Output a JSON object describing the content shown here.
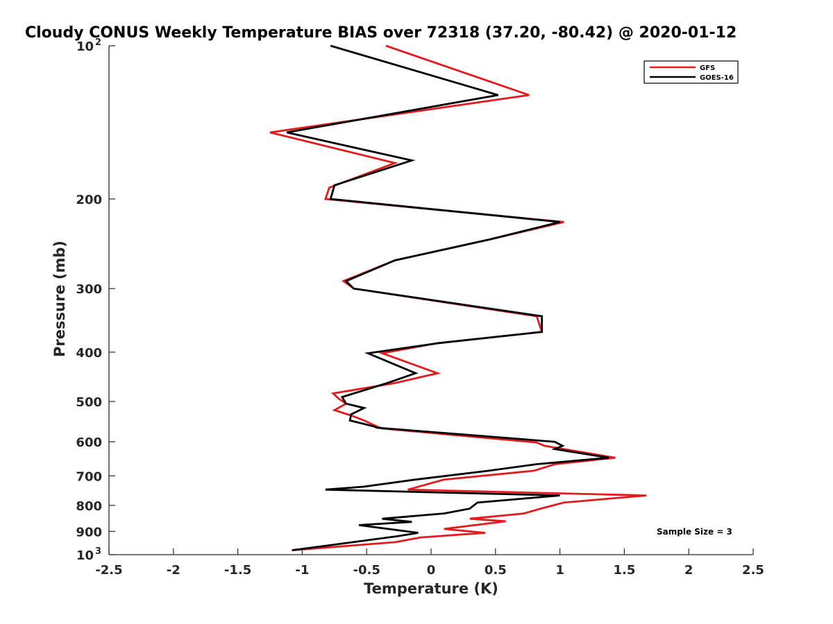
{
  "chart_data": {
    "type": "line",
    "title": "Cloudy CONUS Weekly Temperature BIAS over 72318 (37.20, -80.42) @ 2020-01-12",
    "xlabel": "Temperature (K)",
    "ylabel": "Pressure (mb)",
    "xlim": [
      -2.5,
      2.5
    ],
    "ylim": [
      100,
      1000
    ],
    "yscale": "log",
    "y_reversed": true,
    "grid": false,
    "x_ticks": [
      "-2.5",
      "-2",
      "-1.5",
      "-1",
      "-0.5",
      "0",
      "0.5",
      "1",
      "1.5",
      "2",
      "2.5"
    ],
    "y_ticks": [
      {
        "value": 100,
        "label": "10",
        "sup": "2"
      },
      {
        "value": 200,
        "label": "200",
        "sup": ""
      },
      {
        "value": 300,
        "label": "300",
        "sup": ""
      },
      {
        "value": 400,
        "label": "400",
        "sup": ""
      },
      {
        "value": 500,
        "label": "500",
        "sup": ""
      },
      {
        "value": 600,
        "label": "600",
        "sup": ""
      },
      {
        "value": 700,
        "label": "700",
        "sup": ""
      },
      {
        "value": 800,
        "label": "800",
        "sup": ""
      },
      {
        "value": 900,
        "label": "900",
        "sup": ""
      },
      {
        "value": 1000,
        "label": "10",
        "sup": "3"
      }
    ],
    "legend_position": "top-right",
    "annotation": "Sample Size = 3",
    "series": [
      {
        "name": "GFS",
        "color": "#e41a1c",
        "points": [
          [
            -0.35,
            100
          ],
          [
            0.76,
            125
          ],
          [
            -1.25,
            148
          ],
          [
            -0.28,
            170
          ],
          [
            -0.79,
            190
          ],
          [
            -0.82,
            200
          ],
          [
            1.03,
            222
          ],
          [
            0.46,
            240
          ],
          [
            -0.28,
            264
          ],
          [
            -0.68,
            290
          ],
          [
            -0.6,
            300
          ],
          [
            0.82,
            340
          ],
          [
            0.86,
            365
          ],
          [
            0.05,
            384
          ],
          [
            -0.38,
            402
          ],
          [
            0.05,
            440
          ],
          [
            -0.28,
            460
          ],
          [
            -0.76,
            482
          ],
          [
            -0.72,
            493
          ],
          [
            -0.66,
            505
          ],
          [
            -0.75,
            520
          ],
          [
            -0.6,
            535
          ],
          [
            -0.52,
            545
          ],
          [
            -0.42,
            560
          ],
          [
            -0.38,
            565
          ],
          [
            0.82,
            602
          ],
          [
            0.88,
            611
          ],
          [
            1.43,
            645
          ],
          [
            0.96,
            664
          ],
          [
            0.8,
            684
          ],
          [
            0.1,
            712
          ],
          [
            -0.18,
            745
          ],
          [
            1.67,
            765
          ],
          [
            1.03,
            790
          ],
          [
            0.85,
            812
          ],
          [
            0.72,
            830
          ],
          [
            0.3,
            850
          ],
          [
            0.58,
            860
          ],
          [
            0.1,
            890
          ],
          [
            0.42,
            906
          ],
          [
            -0.08,
            925
          ],
          [
            -0.28,
            945
          ],
          [
            -1.08,
            980
          ]
        ]
      },
      {
        "name": "GOES-16",
        "color": "#000000",
        "points": [
          [
            -0.78,
            100
          ],
          [
            0.52,
            125
          ],
          [
            -1.12,
            148
          ],
          [
            -0.15,
            168
          ],
          [
            -0.75,
            188
          ],
          [
            -0.78,
            200
          ],
          [
            1.0,
            222
          ],
          [
            0.46,
            240
          ],
          [
            -0.28,
            264
          ],
          [
            -0.66,
            290
          ],
          [
            -0.6,
            300
          ],
          [
            0.86,
            340
          ],
          [
            0.86,
            365
          ],
          [
            0.06,
            384
          ],
          [
            -0.49,
            402
          ],
          [
            -0.12,
            440
          ],
          [
            -0.34,
            460
          ],
          [
            -0.69,
            490
          ],
          [
            -0.66,
            505
          ],
          [
            -0.52,
            515
          ],
          [
            -0.62,
            530
          ],
          [
            -0.63,
            545
          ],
          [
            -0.44,
            560
          ],
          [
            -0.42,
            563
          ],
          [
            0.96,
            600
          ],
          [
            1.02,
            611
          ],
          [
            0.96,
            620
          ],
          [
            1.38,
            645
          ],
          [
            0.82,
            664
          ],
          [
            0.45,
            684
          ],
          [
            -0.12,
            712
          ],
          [
            -0.52,
            735
          ],
          [
            -0.82,
            745
          ],
          [
            1.0,
            765
          ],
          [
            0.36,
            790
          ],
          [
            0.3,
            812
          ],
          [
            0.1,
            830
          ],
          [
            -0.38,
            850
          ],
          [
            -0.15,
            862
          ],
          [
            -0.56,
            875
          ],
          [
            -0.1,
            906
          ],
          [
            -0.26,
            920
          ],
          [
            -1.08,
            980
          ]
        ]
      }
    ]
  },
  "colors": {
    "axis": "#262626",
    "gfs": "#e41a1c",
    "goes": "#000000"
  }
}
